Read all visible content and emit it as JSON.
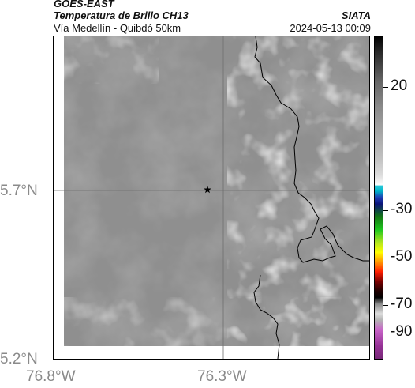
{
  "header": {
    "satellite": "GOES-EAST",
    "product": "Temperatura de Brillo CH13",
    "brand": "SIATA",
    "area": "Vía Medellín - Quibdó 50km",
    "timestamp": "2024-05-13 00:09"
  },
  "axes": {
    "lat_labels": [
      "5.7°N",
      "5.2°N"
    ],
    "lon_labels": [
      "76.8°W",
      "76.3°W"
    ]
  },
  "colorbar": {
    "labels": [
      "20",
      "-30",
      "-50",
      "-70",
      "-90"
    ]
  },
  "map": {
    "marker": "star-icon"
  }
}
